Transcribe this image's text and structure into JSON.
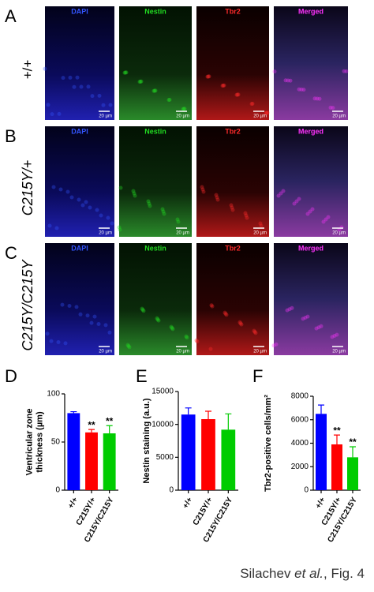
{
  "rows": [
    {
      "letter": "A",
      "genotype": "+/+",
      "channels": [
        "DAPI",
        "Nestin",
        "Tbr2",
        "Merged"
      ],
      "scale_bars": [
        "20 µm",
        "20 µm",
        "20 µm",
        "20 µm"
      ]
    },
    {
      "letter": "B",
      "genotype": "C215Y/+",
      "channels": [
        "DAPI",
        "Nestin",
        "Tbr2",
        "Merged"
      ],
      "scale_bars": [
        "20 µm",
        "20 µm",
        "20 µm",
        "20 µm"
      ]
    },
    {
      "letter": "C",
      "genotype": "C215Y/C215Y",
      "channels": [
        "DAPI",
        "Nestin",
        "Tbr2",
        "Merged"
      ],
      "scale_bars": [
        "20 µm",
        "20 µm",
        "20 µm",
        "20 µm"
      ]
    }
  ],
  "chart_data": [
    {
      "type": "bar",
      "panel": "D",
      "y_label": [
        "Ventricular zone",
        "thickness (µm)"
      ],
      "categories": [
        "+/+",
        "C215Y/+",
        "C215Y/C215Y"
      ],
      "values": [
        80,
        60,
        59
      ],
      "errors": [
        1.5,
        3,
        8
      ],
      "colors": [
        "#0000ff",
        "#ff0000",
        "#00cc00"
      ],
      "ylim": [
        0,
        100
      ],
      "yticks": [
        0,
        50,
        100
      ],
      "annotations": [
        {
          "index": 1,
          "text": "**"
        },
        {
          "index": 2,
          "text": "**"
        }
      ]
    },
    {
      "type": "bar",
      "panel": "E",
      "y_label": [
        "Nestin staining (a.u.)"
      ],
      "categories": [
        "+/+",
        "C215Y/+",
        "C215Y/C215Y"
      ],
      "values": [
        11500,
        10800,
        9200
      ],
      "errors": [
        1000,
        1200,
        2400
      ],
      "colors": [
        "#0000ff",
        "#ff0000",
        "#00cc00"
      ],
      "ylim": [
        0,
        15000
      ],
      "yticks": [
        0,
        5000,
        10000,
        15000
      ]
    },
    {
      "type": "bar",
      "panel": "F",
      "y_label": [
        "Tbr2-positive cells/mm²"
      ],
      "categories": [
        "+/+",
        "C215Y/+",
        "C215Y/C215Y"
      ],
      "values": [
        6500,
        3900,
        2800
      ],
      "errors": [
        750,
        800,
        900
      ],
      "colors": [
        "#0000ff",
        "#ff0000",
        "#00cc00"
      ],
      "ylim": [
        0,
        8000
      ],
      "yticks": [
        0,
        2000,
        4000,
        6000,
        8000
      ],
      "annotations": [
        {
          "index": 1,
          "text": "**"
        },
        {
          "index": 2,
          "text": "**"
        }
      ]
    }
  ],
  "citation": {
    "author": "Silachev ",
    "italic": "et al.",
    "rest": ", Fig. 4"
  }
}
